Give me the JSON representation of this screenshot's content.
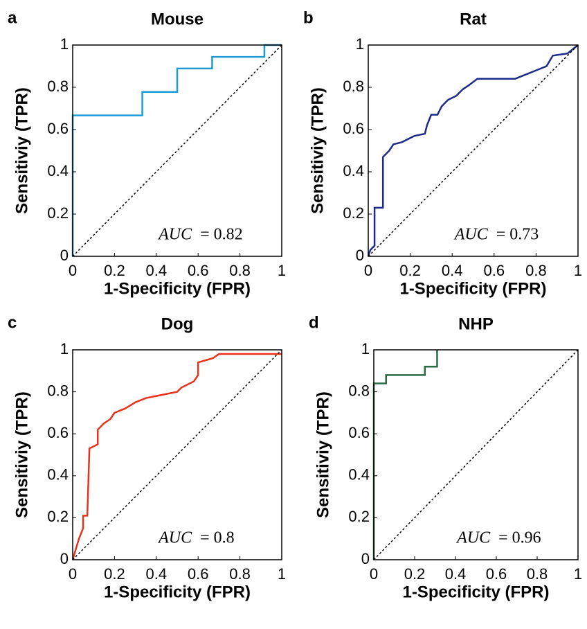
{
  "chart_data": [
    {
      "type": "line",
      "panel": "a",
      "title": "Mouse",
      "xlabel": "1-Specificity (FPR)",
      "ylabel": "Sensitiviy (TPR)",
      "annotation": {
        "label": "AUC",
        "value": "= 0.82"
      },
      "xlim": [
        0,
        1
      ],
      "ylim": [
        0,
        1
      ],
      "xticks": [
        0,
        0.2,
        0.4,
        0.6,
        0.8,
        1
      ],
      "yticks": [
        0,
        0.2,
        0.4,
        0.6,
        0.8,
        1
      ],
      "series": [
        {
          "color": "#1e9ad6",
          "x": [
            0,
            0,
            0.333,
            0.333,
            0.5,
            0.5,
            0.667,
            0.667,
            0.917,
            0.917,
            1
          ],
          "values": [
            0,
            0.667,
            0.667,
            0.778,
            0.778,
            0.889,
            0.889,
            0.944,
            0.944,
            1,
            1
          ]
        },
        {
          "color": "#000000",
          "dash": true,
          "x": [
            0,
            1
          ],
          "values": [
            0,
            1
          ]
        }
      ]
    },
    {
      "type": "line",
      "panel": "b",
      "title": "Rat",
      "xlabel": "1-Specificity (FPR)",
      "ylabel": "Sensitiviy (TPR)",
      "annotation": {
        "label": "AUC",
        "value": "= 0.73"
      },
      "xlim": [
        0,
        1
      ],
      "ylim": [
        0,
        1
      ],
      "xticks": [
        0,
        0.2,
        0.4,
        0.6,
        0.8,
        1
      ],
      "yticks": [
        0,
        0.2,
        0.4,
        0.6,
        0.8,
        1
      ],
      "series": [
        {
          "color": "#1c2a8a",
          "x": [
            0,
            0.01,
            0.03,
            0.03,
            0.07,
            0.07,
            0.1,
            0.12,
            0.16,
            0.2,
            0.22,
            0.27,
            0.28,
            0.3,
            0.33,
            0.35,
            0.38,
            0.42,
            0.45,
            0.48,
            0.52,
            0.7,
            0.75,
            0.8,
            0.85,
            0.88,
            0.95,
            1
          ],
          "values": [
            0,
            0.03,
            0.05,
            0.23,
            0.23,
            0.47,
            0.5,
            0.53,
            0.54,
            0.56,
            0.57,
            0.58,
            0.62,
            0.67,
            0.67,
            0.71,
            0.74,
            0.76,
            0.79,
            0.81,
            0.84,
            0.84,
            0.86,
            0.88,
            0.9,
            0.95,
            0.96,
            1
          ]
        },
        {
          "color": "#000000",
          "dash": true,
          "x": [
            0,
            1
          ],
          "values": [
            0,
            1
          ]
        }
      ]
    },
    {
      "type": "line",
      "panel": "c",
      "title": "Dog",
      "xlabel": "1-Specificity (FPR)",
      "ylabel": "Sensitiviy (TPR)",
      "annotation": {
        "label": "AUC",
        "value": "= 0.8"
      },
      "xlim": [
        0,
        1
      ],
      "ylim": [
        0,
        1
      ],
      "xticks": [
        0,
        0.2,
        0.4,
        0.6,
        0.8,
        1
      ],
      "yticks": [
        0,
        0.2,
        0.4,
        0.6,
        0.8,
        1
      ],
      "series": [
        {
          "color": "#e8321a",
          "x": [
            0,
            0.03,
            0.05,
            0.05,
            0.07,
            0.08,
            0.1,
            0.12,
            0.12,
            0.15,
            0.18,
            0.2,
            0.25,
            0.3,
            0.35,
            0.4,
            0.45,
            0.5,
            0.52,
            0.58,
            0.6,
            0.6,
            0.67,
            0.7,
            1
          ],
          "values": [
            0,
            0.1,
            0.15,
            0.21,
            0.21,
            0.53,
            0.54,
            0.55,
            0.62,
            0.65,
            0.67,
            0.7,
            0.72,
            0.75,
            0.77,
            0.78,
            0.79,
            0.8,
            0.82,
            0.85,
            0.88,
            0.94,
            0.96,
            0.98,
            0.98
          ]
        },
        {
          "color": "#000000",
          "dash": true,
          "x": [
            0,
            1
          ],
          "values": [
            0,
            1
          ]
        }
      ]
    },
    {
      "type": "line",
      "panel": "d",
      "title": "NHP",
      "xlabel": "1-Specificity (FPR)",
      "ylabel": "Sensitiviy (TPR)",
      "annotation": {
        "label": "AUC",
        "value": "= 0.96"
      },
      "xlim": [
        0,
        1
      ],
      "ylim": [
        0,
        1
      ],
      "xticks": [
        0,
        0.2,
        0.4,
        0.6,
        0.8,
        1
      ],
      "yticks": [
        0,
        0.2,
        0.4,
        0.6,
        0.8,
        1
      ],
      "series": [
        {
          "color": "#2a6b45",
          "x": [
            0,
            0,
            0.06,
            0.06,
            0.25,
            0.25,
            0.31,
            0.31
          ],
          "values": [
            0,
            0.84,
            0.84,
            0.88,
            0.88,
            0.92,
            0.92,
            1
          ]
        },
        {
          "color": "#000000",
          "dash": true,
          "x": [
            0,
            1
          ],
          "values": [
            0,
            1
          ]
        }
      ]
    }
  ]
}
